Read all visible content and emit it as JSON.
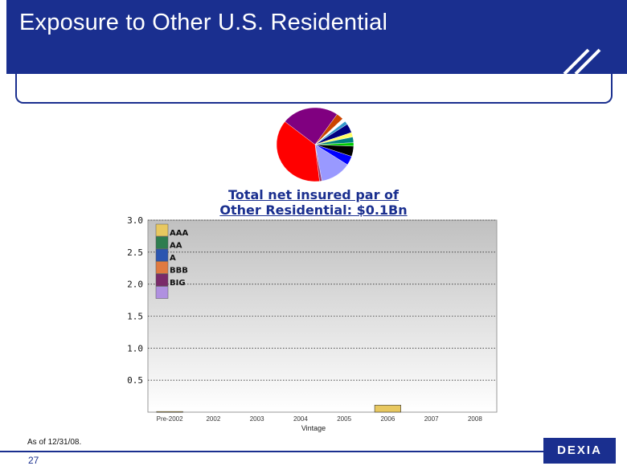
{
  "slide": {
    "title": "Exposure to Other U.S. Residential",
    "footnote": "As of 12/31/08.",
    "page_number": "27",
    "logo_text": "DEXIA"
  },
  "pie": {
    "caption_line1": "Total net insured par of",
    "caption_line2": "Other Residential: $0.1Bn",
    "slices": [
      {
        "value": 24,
        "color": "#800080"
      },
      {
        "value": 3,
        "color": "#cc4400"
      },
      {
        "value": 1.5,
        "color": "#ffffff"
      },
      {
        "value": 1.5,
        "color": "#3399cc"
      },
      {
        "value": 4,
        "color": "#000080"
      },
      {
        "value": 2,
        "color": "#ffff66"
      },
      {
        "value": 2.5,
        "color": "#008080"
      },
      {
        "value": 1.5,
        "color": "#00cc00"
      },
      {
        "value": 4.5,
        "color": "#000000"
      },
      {
        "value": 4,
        "color": "#0000ff"
      },
      {
        "value": 13,
        "color": "#9999ff"
      },
      {
        "value": 1,
        "color": "#993366"
      },
      {
        "value": 37.5,
        "color": "#ff0000"
      }
    ]
  },
  "chart_data": {
    "type": "bar",
    "stacked": true,
    "categories": [
      "Pre-2002",
      "2002",
      "2003",
      "2004",
      "2005",
      "2006",
      "2007",
      "2008"
    ],
    "xlabel": "Vintage",
    "ylim": [
      0,
      3.0
    ],
    "yticks": [
      0.5,
      1.0,
      1.5,
      2.0,
      2.5,
      3.0
    ],
    "ytick_labels": [
      "0.5",
      "1.0",
      "1.5",
      "2.0",
      "2.5",
      "3.0"
    ],
    "grid": true,
    "legend_position": "top-left",
    "series": [
      {
        "name": "AAA",
        "color": "#e8c860",
        "values": [
          0.01,
          0,
          0,
          0,
          0,
          0.11,
          0,
          0
        ]
      },
      {
        "name": "AA",
        "color": "#2e7d4f",
        "values": [
          0,
          0,
          0,
          0,
          0,
          0,
          0,
          0
        ]
      },
      {
        "name": "A",
        "color": "#2a55b0",
        "values": [
          0,
          0,
          0,
          0,
          0,
          0,
          0,
          0
        ]
      },
      {
        "name": "BBB",
        "color": "#e07a40",
        "values": [
          0,
          0,
          0,
          0,
          0,
          0,
          0,
          0
        ]
      },
      {
        "name": "BIG",
        "color": "#7a2a6a",
        "values": [
          0,
          0,
          0,
          0,
          0,
          0,
          0,
          0
        ]
      }
    ],
    "legend_swatch_colors": [
      "#e8c860",
      "#2e7d4f",
      "#2a55b0",
      "#e07a40",
      "#7a2a6a",
      "#b090e0"
    ]
  }
}
